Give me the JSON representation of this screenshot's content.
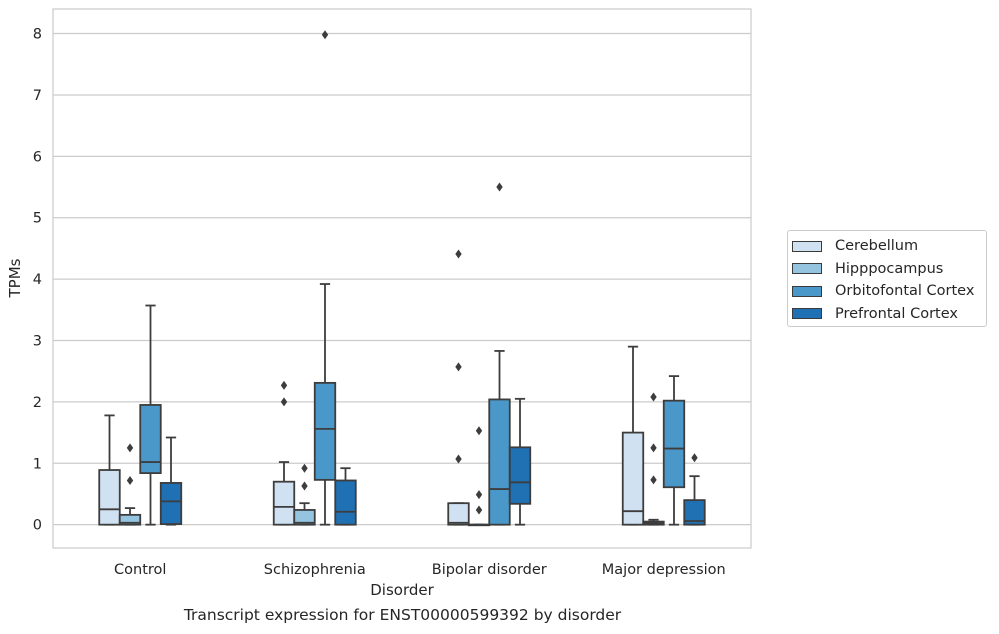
{
  "chart_data": {
    "type": "box",
    "title": "",
    "xlabel": "Disorder",
    "ylabel": "TPMs",
    "ylim": [
      -0.38,
      8.4
    ],
    "yticks": [
      "0",
      "1",
      "2",
      "3",
      "4",
      "5",
      "6",
      "7",
      "8"
    ],
    "grid": true,
    "legend_placement": "right, outside",
    "categories": [
      "Control",
      "Schizophrenia",
      "Bipolar disorder",
      "Major depression"
    ],
    "series": [
      {
        "name": "Cerebellum",
        "color": "#d0e1f2",
        "boxes": [
          {
            "whislo": 0,
            "q1": 0,
            "med": 0.25,
            "q3": 0.89,
            "whishi": 1.78,
            "fliers": []
          },
          {
            "whislo": 0,
            "q1": 0,
            "med": 0.29,
            "q3": 0.7,
            "whishi": 1.02,
            "fliers": [
              2.0,
              2.27
            ]
          },
          {
            "whislo": 0,
            "q1": 0,
            "med": 0.03,
            "q3": 0.35,
            "whishi": 0.35,
            "fliers": [
              1.07,
              2.57,
              4.41
            ]
          },
          {
            "whislo": 0,
            "q1": 0,
            "med": 0.22,
            "q3": 1.5,
            "whishi": 2.9,
            "fliers": []
          }
        ]
      },
      {
        "name": "Hipppocampus",
        "color": "#94c4df",
        "boxes": [
          {
            "whislo": 0,
            "q1": 0,
            "med": 0.03,
            "q3": 0.16,
            "whishi": 0.27,
            "fliers": [
              0.72,
              1.25
            ]
          },
          {
            "whislo": 0,
            "q1": 0,
            "med": 0.03,
            "q3": 0.24,
            "whishi": 0.35,
            "fliers": [
              0.63,
              0.92
            ]
          },
          {
            "whislo": 0,
            "q1": 0,
            "med": 0,
            "q3": 0,
            "whishi": 0,
            "fliers": [
              0.24,
              0.49,
              1.53
            ]
          },
          {
            "whislo": 0,
            "q1": 0,
            "med": 0.02,
            "q3": 0.05,
            "whishi": 0.08,
            "fliers": [
              0.73,
              1.25,
              2.08
            ]
          }
        ]
      },
      {
        "name": "Orbitofontal Cortex",
        "color": "#4a98c9",
        "boxes": [
          {
            "whislo": 0,
            "q1": 0.84,
            "med": 1.02,
            "q3": 1.95,
            "whishi": 3.57,
            "fliers": []
          },
          {
            "whislo": 0,
            "q1": 0.73,
            "med": 1.56,
            "q3": 2.31,
            "whishi": 3.92,
            "fliers": [
              7.98
            ]
          },
          {
            "whislo": 0,
            "q1": 0,
            "med": 0.58,
            "q3": 2.04,
            "whishi": 2.83,
            "fliers": [
              5.5
            ]
          },
          {
            "whislo": 0,
            "q1": 0.61,
            "med": 1.24,
            "q3": 2.02,
            "whishi": 2.42,
            "fliers": []
          }
        ]
      },
      {
        "name": "Prefrontal Cortex",
        "color": "#2070b4",
        "boxes": [
          {
            "whislo": 0,
            "q1": 0.01,
            "med": 0.38,
            "q3": 0.68,
            "whishi": 1.42,
            "fliers": []
          },
          {
            "whislo": 0,
            "q1": 0,
            "med": 0.21,
            "q3": 0.72,
            "whishi": 0.92,
            "fliers": []
          },
          {
            "whislo": 0,
            "q1": 0.34,
            "med": 0.69,
            "q3": 1.26,
            "whishi": 2.05,
            "fliers": []
          },
          {
            "whislo": 0,
            "q1": 0,
            "med": 0.06,
            "q3": 0.4,
            "whishi": 0.79,
            "fliers": [
              1.09
            ]
          }
        ]
      }
    ]
  },
  "caption": "Transcript expression for ENST00000599392 by disorder"
}
